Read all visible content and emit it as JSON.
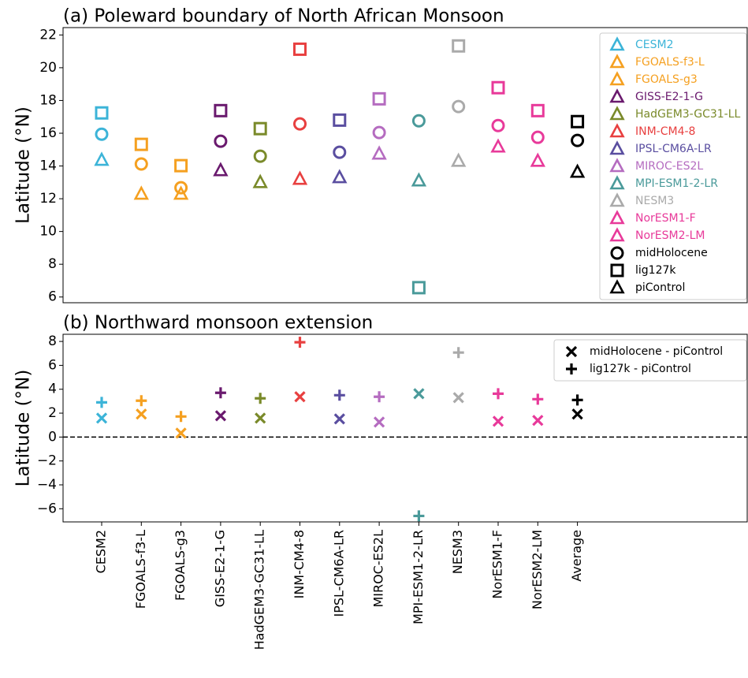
{
  "chart_data": [
    {
      "type": "scatter",
      "title": "(a) Poleward boundary of North African Monsoon",
      "y_label": "Latitude (°N)",
      "categories": [
        "CESM2",
        "FGOALS-f3-L",
        "FGOALS-g3",
        "GISS-E2-1-G",
        "HadGEM3-GC31-LL",
        "INM-CM4-8",
        "IPSL-CM6A-LR",
        "MIROC-ES2L",
        "MPI-ESM1-2-LR",
        "NESM3",
        "NorESM1-F",
        "NorESM2-LM",
        "Average"
      ],
      "colors": [
        "#3cb4d8",
        "#f5a020",
        "#f5a020",
        "#6a1a6e",
        "#7a8a2a",
        "#e84040",
        "#5a4ea0",
        "#b56cc0",
        "#4a9a9a",
        "#aaaaaa",
        "#e83a9a",
        "#e83a9a",
        "#000000"
      ],
      "xticklabels": false,
      "legend": "upper right",
      "legend_marker": "triangle",
      "legend_entries": [
        "CESM2",
        "FGOALS-f3-L",
        "FGOALS-g3",
        "GISS-E2-1-G",
        "HadGEM3-GC31-LL",
        "INM-CM4-8",
        "IPSL-CM6A-LR",
        "MIROC-ES2L",
        "MPI-ESM1-2-LR",
        "NESM3",
        "NorESM1-F",
        "NorESM2-LM"
      ],
      "series": [
        {
          "name": "midHolocene",
          "marker": "circle",
          "color": "#000000",
          "values": [
            15.94,
            14.12,
            12.67,
            15.51,
            14.6,
            16.57,
            14.84,
            16.04,
            16.76,
            17.63,
            16.47,
            15.75,
            15.56
          ]
        },
        {
          "name": "lig127k",
          "marker": "square",
          "color": "#000000",
          "values": [
            17.24,
            15.32,
            14.02,
            17.38,
            16.28,
            21.13,
            16.8,
            18.1,
            6.57,
            21.33,
            18.78,
            17.38,
            16.71
          ]
        },
        {
          "name": "piControl",
          "marker": "triangle",
          "color": "#000000",
          "values": [
            14.36,
            12.29,
            12.29,
            13.73,
            13.0,
            13.2,
            13.3,
            14.74,
            13.1,
            14.3,
            15.17,
            14.3,
            13.63
          ]
        }
      ],
      "ylim": [
        5.65,
        22.45
      ],
      "yticks": [
        6,
        8,
        10,
        12,
        14,
        16,
        18,
        20,
        22
      ]
    },
    {
      "type": "scatter",
      "title": "(b) Northward monsoon extension",
      "y_label": "Latitude (°N)",
      "categories": [
        "CESM2",
        "FGOALS-f3-L",
        "FGOALS-g3",
        "GISS-E2-1-G",
        "HadGEM3-GC31-LL",
        "INM-CM4-8",
        "IPSL-CM6A-LR",
        "MIROC-ES2L",
        "MPI-ESM1-2-LR",
        "NESM3",
        "NorESM1-F",
        "NorESM2-LM",
        "Average"
      ],
      "colors": [
        "#3cb4d8",
        "#f5a020",
        "#f5a020",
        "#6a1a6e",
        "#7a8a2a",
        "#e84040",
        "#5a4ea0",
        "#b56cc0",
        "#4a9a9a",
        "#aaaaaa",
        "#e83a9a",
        "#e83a9a",
        "#000000"
      ],
      "xticklabels": true,
      "legend": "upper right",
      "hline": 0,
      "series": [
        {
          "name": "midHolocene - piControl",
          "marker": "x",
          "color": "#000000",
          "values": [
            1.58,
            1.92,
            0.33,
            1.78,
            1.58,
            3.37,
            1.52,
            1.25,
            3.63,
            3.3,
            1.32,
            1.39,
            1.92
          ]
        },
        {
          "name": "lig127k - piControl",
          "marker": "plus",
          "color": "#000000",
          "values": [
            2.9,
            3.04,
            1.72,
            3.7,
            3.24,
            7.93,
            3.5,
            3.37,
            -6.6,
            7.07,
            3.63,
            3.17,
            3.1
          ]
        }
      ],
      "ylim": [
        -7.1,
        8.6
      ],
      "yticks": [
        {
          "value": -6,
          "label": "−6"
        },
        {
          "value": -4,
          "label": "−4"
        },
        {
          "value": -2,
          "label": "−2"
        },
        0,
        2,
        4,
        6,
        8
      ]
    }
  ]
}
